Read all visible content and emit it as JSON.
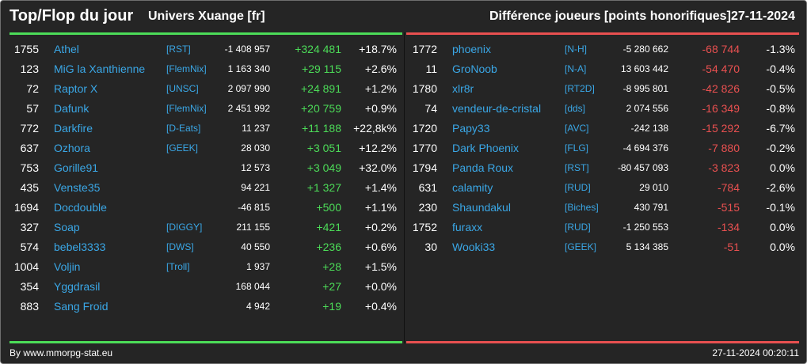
{
  "header": {
    "title": "Top/Flop du jour",
    "server": "Univers Xuange [fr]",
    "metric": "Différence joueurs [points honorifiques]",
    "date": "27-11-2024"
  },
  "colors": {
    "background": "#252525",
    "text": "#ffffff",
    "link": "#3aa7e6",
    "gain": "#4cdc58",
    "loss": "#e85050"
  },
  "top_rows": [
    {
      "rank": "1755",
      "name": "Athel",
      "tag": "[RST]",
      "total": "-1 408 957",
      "delta": "+324 481",
      "pct": "+18.7%"
    },
    {
      "rank": "123",
      "name": "MiG la Xanthienne",
      "tag": "[FlemNix]",
      "total": "1 163 340",
      "delta": "+29 115",
      "pct": "+2.6%"
    },
    {
      "rank": "72",
      "name": "Raptor X",
      "tag": "[UNSC]",
      "total": "2 097 990",
      "delta": "+24 891",
      "pct": "+1.2%"
    },
    {
      "rank": "57",
      "name": "Dafunk",
      "tag": "[FlemNix]",
      "total": "2 451 992",
      "delta": "+20 759",
      "pct": "+0.9%"
    },
    {
      "rank": "772",
      "name": "Darkfire",
      "tag": "[D-Eats]",
      "total": "11 237",
      "delta": "+11 188",
      "pct": "+22,8k%"
    },
    {
      "rank": "637",
      "name": "Ozhora",
      "tag": "[GEEK]",
      "total": "28 030",
      "delta": "+3 051",
      "pct": "+12.2%"
    },
    {
      "rank": "753",
      "name": "Gorille91",
      "tag": "",
      "total": "12 573",
      "delta": "+3 049",
      "pct": "+32.0%"
    },
    {
      "rank": "435",
      "name": "Venste35",
      "tag": "",
      "total": "94 221",
      "delta": "+1 327",
      "pct": "+1.4%"
    },
    {
      "rank": "1694",
      "name": "Docdouble",
      "tag": "",
      "total": "-46 815",
      "delta": "+500",
      "pct": "+1.1%"
    },
    {
      "rank": "327",
      "name": "Soap",
      "tag": "[DIGGY]",
      "total": "211 155",
      "delta": "+421",
      "pct": "+0.2%"
    },
    {
      "rank": "574",
      "name": "bebel3333",
      "tag": "[DWS]",
      "total": "40 550",
      "delta": "+236",
      "pct": "+0.6%"
    },
    {
      "rank": "1004",
      "name": "Voljin",
      "tag": "[Troll]",
      "total": "1 937",
      "delta": "+28",
      "pct": "+1.5%"
    },
    {
      "rank": "354",
      "name": "Yggdrasil",
      "tag": "",
      "total": "168 044",
      "delta": "+27",
      "pct": "+0.0%"
    },
    {
      "rank": "883",
      "name": "Sang Froid",
      "tag": "",
      "total": "4 942",
      "delta": "+19",
      "pct": "+0.4%"
    }
  ],
  "flop_rows": [
    {
      "rank": "1772",
      "name": "phoenix",
      "tag": "[N-H]",
      "total": "-5 280 662",
      "delta": "-68 744",
      "pct": "-1.3%"
    },
    {
      "rank": "11",
      "name": "GroNoob",
      "tag": "[N-A]",
      "total": "13 603 442",
      "delta": "-54 470",
      "pct": "-0.4%"
    },
    {
      "rank": "1780",
      "name": "xlr8r",
      "tag": "[RT2D]",
      "total": "-8 995 801",
      "delta": "-42 826",
      "pct": "-0.5%"
    },
    {
      "rank": "74",
      "name": "vendeur-de-cristal",
      "tag": "[dds]",
      "total": "2 074 556",
      "delta": "-16 349",
      "pct": "-0.8%"
    },
    {
      "rank": "1720",
      "name": "Papy33",
      "tag": "[AVC]",
      "total": "-242 138",
      "delta": "-15 292",
      "pct": "-6.7%"
    },
    {
      "rank": "1770",
      "name": "Dark Phoenix",
      "tag": "[FLG]",
      "total": "-4 694 376",
      "delta": "-7 880",
      "pct": "-0.2%"
    },
    {
      "rank": "1794",
      "name": "Panda Roux",
      "tag": "[RST]",
      "total": "-80 457 093",
      "delta": "-3 823",
      "pct": "0.0%"
    },
    {
      "rank": "631",
      "name": "calamity",
      "tag": "[RUD]",
      "total": "29 010",
      "delta": "-784",
      "pct": "-2.6%"
    },
    {
      "rank": "230",
      "name": "Shaundakul",
      "tag": "[Biches]",
      "total": "430 791",
      "delta": "-515",
      "pct": "-0.1%"
    },
    {
      "rank": "1752",
      "name": "furaxx",
      "tag": "[RUD]",
      "total": "-1 250 553",
      "delta": "-134",
      "pct": "0.0%"
    },
    {
      "rank": "30",
      "name": "Wooki33",
      "tag": "[GEEK]",
      "total": "5 134 385",
      "delta": "-51",
      "pct": "0.0%"
    }
  ],
  "footer": {
    "credit": "By www.mmorpg-stat.eu",
    "timestamp": "27-11-2024 00:20:11"
  }
}
